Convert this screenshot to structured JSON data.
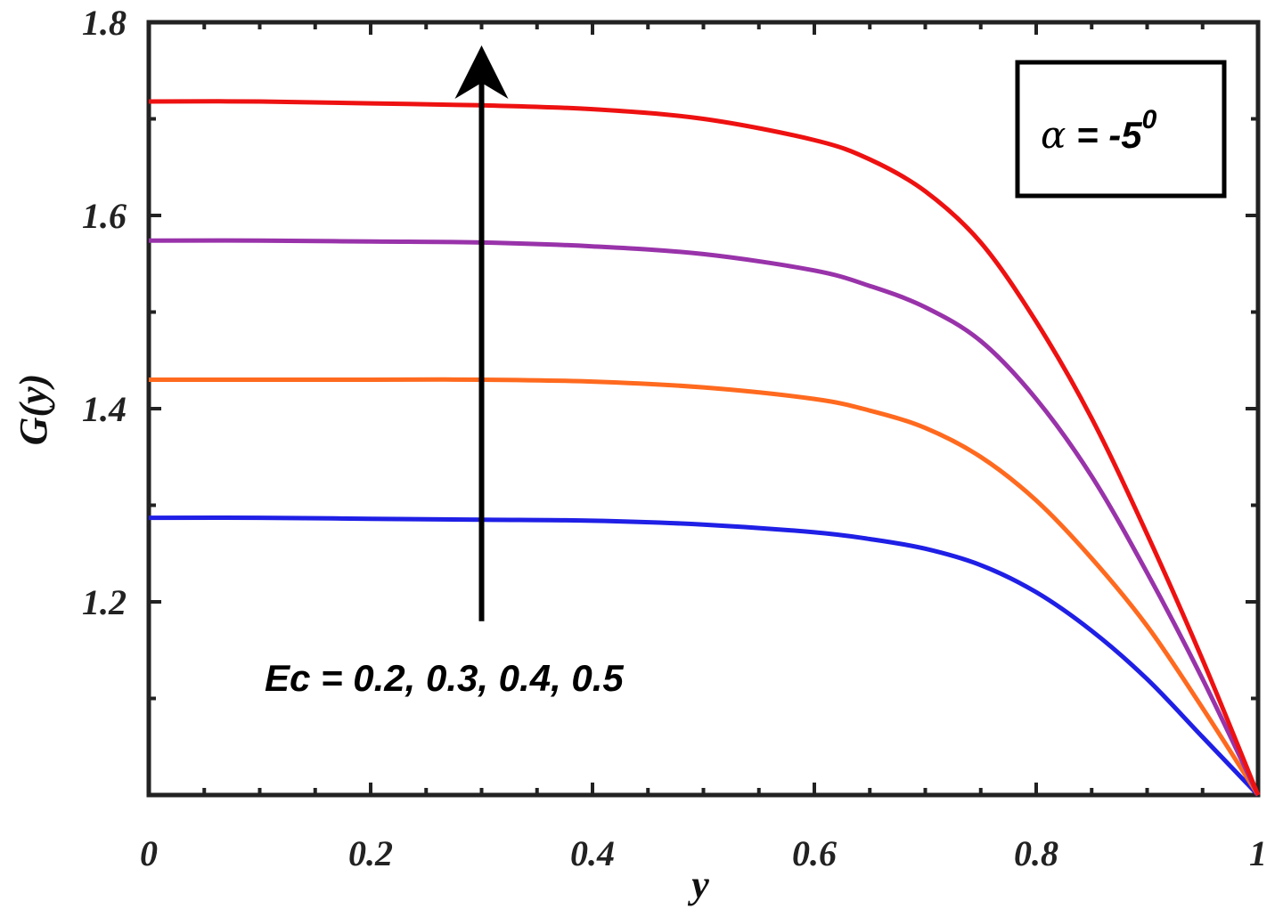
{
  "chart_data": {
    "type": "line",
    "xlabel": "y",
    "ylabel": "G(y)",
    "xlim": [
      0,
      1
    ],
    "ylim": [
      1.0,
      1.8
    ],
    "xticks": [
      0,
      0.2,
      0.4,
      0.6,
      0.8,
      1
    ],
    "xtick_labels": [
      "0",
      "0.2",
      "0.4",
      "0.6",
      "0.8",
      "1"
    ],
    "yticks": [
      1.2,
      1.4,
      1.6,
      1.8
    ],
    "ytick_labels": [
      "1.2",
      "1.4",
      "1.6",
      "1.8"
    ],
    "grid": false,
    "series": [
      {
        "color": "#1f1fe6",
        "x": [
          0,
          0.1,
          0.2,
          0.3,
          0.4,
          0.5,
          0.6,
          0.65,
          0.7,
          0.75,
          0.8,
          0.85,
          0.9,
          0.95,
          1.0
        ],
        "y": [
          1.287,
          1.287,
          1.286,
          1.285,
          1.284,
          1.28,
          1.272,
          1.265,
          1.255,
          1.238,
          1.21,
          1.17,
          1.12,
          1.06,
          1.0
        ]
      },
      {
        "color": "#ff6a1f",
        "x": [
          0,
          0.1,
          0.2,
          0.3,
          0.4,
          0.5,
          0.6,
          0.65,
          0.7,
          0.75,
          0.8,
          0.85,
          0.9,
          0.95,
          1.0
        ],
        "y": [
          1.43,
          1.43,
          1.43,
          1.43,
          1.428,
          1.422,
          1.41,
          1.398,
          1.38,
          1.35,
          1.305,
          1.245,
          1.175,
          1.09,
          1.0
        ]
      },
      {
        "color": "#9933aa",
        "x": [
          0,
          0.1,
          0.2,
          0.3,
          0.4,
          0.5,
          0.6,
          0.65,
          0.7,
          0.75,
          0.8,
          0.85,
          0.9,
          0.95,
          1.0
        ],
        "y": [
          1.574,
          1.574,
          1.573,
          1.572,
          1.568,
          1.56,
          1.543,
          1.527,
          1.505,
          1.47,
          1.41,
          1.33,
          1.23,
          1.12,
          1.0
        ]
      },
      {
        "color": "#ee1111",
        "x": [
          0,
          0.1,
          0.2,
          0.3,
          0.4,
          0.5,
          0.6,
          0.65,
          0.7,
          0.75,
          0.8,
          0.85,
          0.9,
          0.95,
          1.0
        ],
        "y": [
          1.718,
          1.718,
          1.716,
          1.714,
          1.71,
          1.7,
          1.678,
          1.658,
          1.625,
          1.572,
          1.49,
          1.39,
          1.27,
          1.14,
          1.0
        ]
      }
    ],
    "annotations": {
      "ec_label": "Ec = 0.2, 0.3, 0.4, 0.5",
      "alpha_symbol": "α",
      "alpha_equals": " = -5",
      "alpha_superscript": "0",
      "arrow_x": 0.3,
      "arrow_y_start": 1.18,
      "arrow_y_end": 1.765
    }
  }
}
